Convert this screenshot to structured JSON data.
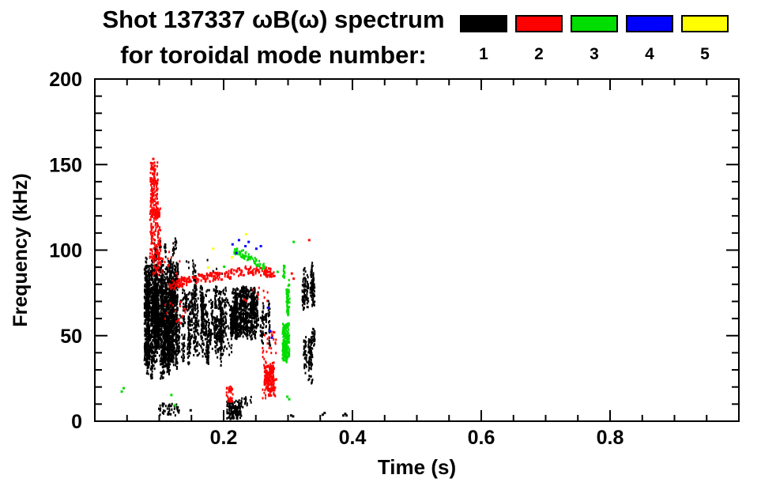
{
  "page": {
    "background": "#ffffff"
  },
  "title": {
    "line1": "Shot 137337 ωB(ω) spectrum",
    "line2": "for toroidal mode number:"
  },
  "legend": {
    "entries": [
      {
        "label": "1",
        "color": "#000000"
      },
      {
        "label": "2",
        "color": "#ff0000"
      },
      {
        "label": "3",
        "color": "#00dd00"
      },
      {
        "label": "4",
        "color": "#0000ff"
      },
      {
        "label": "5",
        "color": "#ffff00"
      }
    ]
  },
  "chart_data": {
    "type": "scatter",
    "title": "Shot 137337 ωB(ω) spectrum for toroidal mode number: 1-5",
    "xlabel": "Time (s)",
    "ylabel": "Frequency (kHz)",
    "xlim": [
      0,
      1.0
    ],
    "ylim": [
      0,
      200
    ],
    "xticks_major": [
      0.2,
      0.4,
      0.6,
      0.8
    ],
    "xtick_minor_step": 0.05,
    "yticks_major": [
      0,
      50,
      100,
      150,
      200
    ],
    "ytick_minor_step": 10,
    "grid": false,
    "legend_position": "top-right-outside",
    "units": {
      "t": "s",
      "f": "kHz"
    },
    "series": [
      {
        "name": "n=1",
        "color": "#000000",
        "description": "Dense broadband magnetic activity 0.07-0.34 s, mostly 25-95 kHz, with low-frequency bursts near 5-12 kHz",
        "features": [
          {
            "type": "streaks",
            "t": [
              0.077,
              0.127
            ],
            "f": [
              25,
              97
            ],
            "streaks": 55,
            "pts": 40,
            "span": [
              0.25,
              0.85
            ]
          },
          {
            "type": "box",
            "t": [
              0.079,
              0.125
            ],
            "f": [
              35,
              92
            ],
            "n": 700
          },
          {
            "type": "streaks",
            "t": [
              0.085,
              0.125
            ],
            "f": [
              92,
              110
            ],
            "streaks": 7,
            "pts": 10,
            "span": [
              0.2,
              0.6
            ]
          },
          {
            "type": "streaks",
            "t": [
              0.127,
              0.212
            ],
            "f": [
              33,
              82
            ],
            "streaks": 34,
            "pts": 24,
            "span": [
              0.15,
              0.8
            ]
          },
          {
            "type": "box",
            "t": [
              0.127,
              0.212
            ],
            "f": [
              38,
              78
            ],
            "n": 180
          },
          {
            "type": "streaks",
            "t": [
              0.15,
              0.165
            ],
            "f": [
              62,
              95
            ],
            "streaks": 4,
            "pts": 14,
            "span": [
              0.3,
              0.8
            ]
          },
          {
            "type": "streaks",
            "t": [
              0.21,
              0.252
            ],
            "f": [
              48,
              80
            ],
            "streaks": 24,
            "pts": 30,
            "span": [
              0.3,
              0.9
            ]
          },
          {
            "type": "box",
            "t": [
              0.212,
              0.25
            ],
            "f": [
              50,
              78
            ],
            "n": 260
          },
          {
            "type": "streaks",
            "t": [
              0.252,
              0.27
            ],
            "f": [
              40,
              76
            ],
            "streaks": 6,
            "pts": 14,
            "span": [
              0.2,
              0.6
            ]
          },
          {
            "type": "streaks",
            "t": [
              0.322,
              0.34
            ],
            "f": [
              58,
              94
            ],
            "streaks": 8,
            "pts": 22,
            "span": [
              0.3,
              0.8
            ]
          },
          {
            "type": "streaks",
            "t": [
              0.323,
              0.339
            ],
            "f": [
              28,
              57
            ],
            "streaks": 7,
            "pts": 18,
            "span": [
              0.3,
              0.8
            ]
          },
          {
            "type": "box",
            "t": [
              0.33,
              0.338
            ],
            "f": [
              22,
              28
            ],
            "n": 10
          },
          {
            "type": "box",
            "t": [
              0.098,
              0.13
            ],
            "f": [
              4,
              11
            ],
            "n": 55
          },
          {
            "type": "box",
            "t": [
              0.204,
              0.227
            ],
            "f": [
              2,
              13
            ],
            "n": 150
          },
          {
            "type": "box",
            "t": [
              0.227,
              0.243
            ],
            "f": [
              8,
              15
            ],
            "n": 16
          },
          {
            "type": "box",
            "t": [
              0.14,
              0.205
            ],
            "f": [
              85,
              95
            ],
            "n": 10
          },
          {
            "type": "dots",
            "points": [
              [
                0.352,
                4.5
              ],
              [
                0.355,
                5.5
              ],
              [
                0.384,
                4
              ],
              [
                0.387,
                5
              ],
              [
                0.389,
                4
              ],
              [
                0.303,
                4
              ],
              [
                0.306,
                3.5
              ],
              [
                0.147,
                7
              ]
            ]
          }
        ]
      },
      {
        "name": "n=2",
        "color": "#ff0000",
        "description": "Chirping mode 95-155 kHz near 0.08-0.10 s; band ~80-90 kHz from 0.12-0.28 s; burst 15-53 kHz near 0.27 s",
        "features": [
          {
            "type": "box",
            "t": [
              0.085,
              0.097
            ],
            "f": [
              120,
              152
            ],
            "n": 150
          },
          {
            "type": "box",
            "t": [
              0.084,
              0.101
            ],
            "f": [
              95,
              125
            ],
            "n": 130
          },
          {
            "type": "box",
            "t": [
              0.088,
              0.103
            ],
            "f": [
              86,
              100
            ],
            "n": 45
          },
          {
            "type": "dots",
            "points": [
              [
                0.089,
                154
              ],
              [
                0.091,
                150
              ],
              [
                0.087,
                148
              ]
            ]
          },
          {
            "type": "box",
            "t": [
              0.1,
              0.14
            ],
            "f": [
              55,
              100
            ],
            "n": 26
          },
          {
            "type": "band",
            "pts": [
              [
                0.115,
                80
              ],
              [
                0.16,
                84
              ],
              [
                0.2,
                86
              ],
              [
                0.24,
                89
              ],
              [
                0.278,
                87
              ]
            ],
            "n": 260,
            "jt": 0.004,
            "jf": 2.6
          },
          {
            "type": "box",
            "t": [
              0.23,
              0.272
            ],
            "f": [
              70,
              79
            ],
            "n": 12
          },
          {
            "type": "box",
            "t": [
              0.259,
              0.281
            ],
            "f": [
              14,
              53
            ],
            "n": 80
          },
          {
            "type": "box",
            "t": [
              0.262,
              0.277
            ],
            "f": [
              17,
              33
            ],
            "n": 150
          },
          {
            "type": "box",
            "t": [
              0.203,
              0.213
            ],
            "f": [
              12,
              21
            ],
            "n": 32
          },
          {
            "type": "dots",
            "points": [
              [
                0.304,
                87
              ],
              [
                0.307,
                84
              ],
              [
                0.331,
                106.5
              ],
              [
                0.128,
                60
              ],
              [
                0.131,
                58
              ],
              [
                0.134,
                62
              ]
            ]
          }
        ]
      },
      {
        "name": "n=3",
        "color": "#00dd00",
        "description": "Band 90-101 kHz from 0.21-0.26 s; vertical burst 34-95 kHz near 0.29-0.30 s",
        "features": [
          {
            "type": "band",
            "pts": [
              [
                0.215,
                101
              ],
              [
                0.235,
                97
              ],
              [
                0.252,
                93
              ],
              [
                0.262,
                90
              ]
            ],
            "n": 80,
            "jt": 0.003,
            "jf": 2
          },
          {
            "type": "streaks",
            "t": [
              0.284,
              0.302
            ],
            "f": [
              58,
              95
            ],
            "streaks": 5,
            "pts": 16,
            "span": [
              0.2,
              0.7
            ]
          },
          {
            "type": "streaks",
            "t": [
              0.289,
              0.302
            ],
            "f": [
              34,
              59
            ],
            "streaks": 5,
            "pts": 30,
            "span": [
              0.4,
              0.95
            ]
          },
          {
            "type": "box",
            "t": [
              0.29,
              0.301
            ],
            "f": [
              36,
              58
            ],
            "n": 90
          },
          {
            "type": "dots",
            "points": [
              [
                0.307,
                105.5
              ],
              [
                0.297,
                15
              ],
              [
                0.3,
                13.5
              ],
              [
                0.117,
                16
              ],
              [
                0.123,
                10
              ],
              [
                0.04,
                18
              ],
              [
                0.043,
                20
              ],
              [
                0.199,
                91
              ],
              [
                0.282,
                88
              ]
            ]
          }
        ]
      },
      {
        "name": "n=4",
        "color": "#0000ff",
        "description": "Sparse points near 100-107 kHz at 0.21-0.26 s and 50-67 kHz near 0.27 s",
        "features": [
          {
            "type": "dots",
            "points": [
              [
                0.212,
                104
              ],
              [
                0.218,
                99
              ],
              [
                0.222,
                106.5
              ],
              [
                0.232,
                103
              ],
              [
                0.237,
                105.5
              ],
              [
                0.249,
                101.5
              ],
              [
                0.256,
                103
              ],
              [
                0.267,
                67
              ],
              [
                0.27,
                53.5
              ],
              [
                0.273,
                49.5
              ]
            ]
          }
        ]
      },
      {
        "name": "n=5",
        "color": "#ffff00",
        "description": "Very sparse points near 90-110 kHz at 0.17-0.24 s",
        "features": [
          {
            "type": "dots",
            "points": [
              [
                0.174,
                90.5
              ],
              [
                0.182,
                101.5
              ],
              [
                0.211,
                96.5
              ],
              [
                0.233,
                110
              ]
            ]
          }
        ]
      }
    ]
  }
}
